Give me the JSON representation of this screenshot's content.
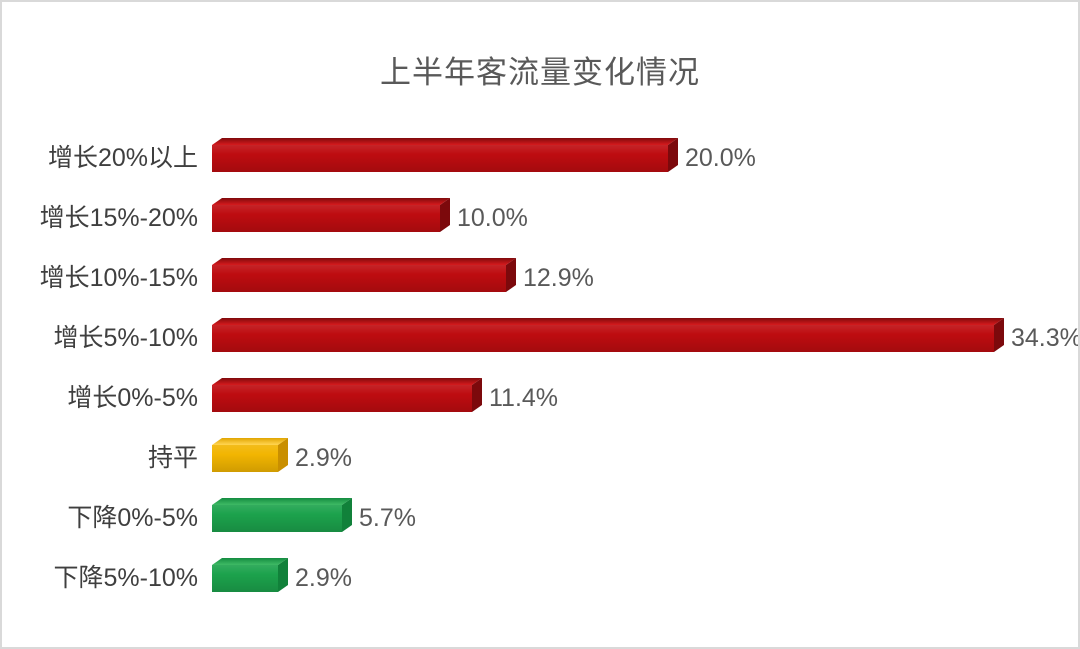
{
  "chart_data": {
    "type": "bar",
    "orientation": "horizontal",
    "style": "3d-box",
    "title": "上半年客流量变化情况",
    "categories": [
      "增长20%以上",
      "增长15%-20%",
      "增长10%-15%",
      "增长5%-10%",
      "增长0%-5%",
      "持平",
      "下降0%-5%",
      "下降5%-10%"
    ],
    "values": [
      20.0,
      10.0,
      12.9,
      34.3,
      11.4,
      2.9,
      5.7,
      2.9
    ],
    "value_labels": [
      "20.0%",
      "10.0%",
      "12.9%",
      "34.3%",
      "11.4%",
      "2.9%",
      "5.7%",
      "2.9%"
    ],
    "bar_colors": [
      "red",
      "red",
      "red",
      "red",
      "red",
      "gold",
      "green",
      "green"
    ],
    "palette": {
      "red": {
        "front": "#be0c10",
        "top": "#d1191c",
        "topdark": "#7f0a0c",
        "side": "#7c090c"
      },
      "gold": {
        "front": "#f2b501",
        "top": "#ffd34d",
        "topdark": "#e0a400",
        "side": "#c98f00"
      },
      "green": {
        "front": "#1ca24c",
        "top": "#3cb863",
        "topdark": "#148c40",
        "side": "#11813a"
      }
    },
    "xlim": [
      0,
      34.5
    ],
    "grid": false,
    "legend": false,
    "axis_lines": false,
    "text_colors": {
      "title": "#595959",
      "category": "#3f3f3f",
      "value": "#595959"
    },
    "background": "#ffffff",
    "frame_color": "#d9d9d9"
  }
}
